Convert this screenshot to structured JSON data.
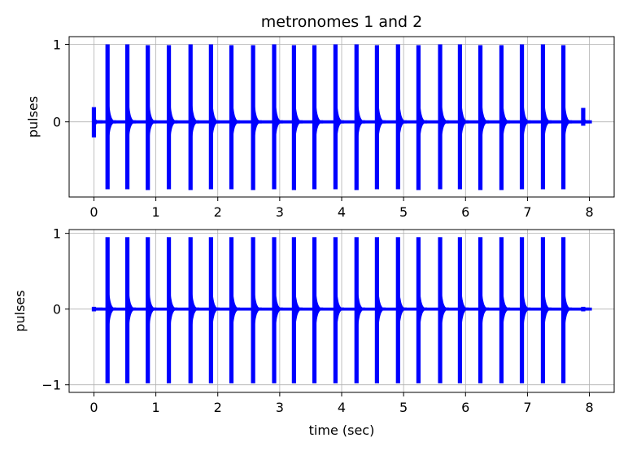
{
  "chart_data": [
    {
      "type": "line",
      "title": "metronomes 1 and 2",
      "xlabel": "",
      "ylabel": "pulses",
      "xlim": [
        -0.4,
        8.4
      ],
      "ylim": [
        -0.97,
        1.1
      ],
      "xticks": [
        0,
        1,
        2,
        3,
        4,
        5,
        6,
        7,
        8
      ],
      "yticks": [
        {
          "value": 1,
          "label": "1"
        },
        {
          "value": 0,
          "label": "0"
        }
      ],
      "grid": true,
      "color": "#0000ff",
      "series": [
        {
          "pulse_times": [
            0.0,
            0.22,
            0.54,
            0.87,
            1.21,
            1.56,
            1.89,
            2.22,
            2.57,
            2.91,
            3.23,
            3.56,
            3.9,
            4.24,
            4.57,
            4.91,
            5.24,
            5.59,
            5.91,
            6.24,
            6.58,
            6.91,
            7.25,
            7.58,
            7.9
          ],
          "pulse_max": [
            0.19,
            1.0,
            1.0,
            0.99,
            0.99,
            1.0,
            1.0,
            0.99,
            0.99,
            1.0,
            0.99,
            0.99,
            1.0,
            1.0,
            0.99,
            1.0,
            0.99,
            1.0,
            1.0,
            0.99,
            0.99,
            1.0,
            1.0,
            0.99,
            0.18
          ],
          "pulse_min": [
            -0.2,
            -0.87,
            -0.87,
            -0.88,
            -0.87,
            -0.88,
            -0.87,
            -0.87,
            -0.88,
            -0.87,
            -0.88,
            -0.87,
            -0.87,
            -0.88,
            -0.87,
            -0.87,
            -0.88,
            -0.87,
            -0.87,
            -0.88,
            -0.88,
            -0.87,
            -0.87,
            -0.87,
            -0.05
          ],
          "data_end": 8.0
        }
      ]
    },
    {
      "type": "line",
      "title": "",
      "xlabel": "time (sec)",
      "ylabel": "pulses",
      "xlim": [
        -0.4,
        8.4
      ],
      "ylim": [
        -1.1,
        1.05
      ],
      "xticks": [
        0,
        1,
        2,
        3,
        4,
        5,
        6,
        7,
        8
      ],
      "yticks": [
        {
          "value": 1,
          "label": "1"
        },
        {
          "value": 0,
          "label": "0"
        },
        {
          "value": -1,
          "label": "−1"
        }
      ],
      "grid": true,
      "color": "#0000ff",
      "series": [
        {
          "pulse_times": [
            0.0,
            0.22,
            0.54,
            0.87,
            1.21,
            1.56,
            1.89,
            2.22,
            2.57,
            2.91,
            3.23,
            3.56,
            3.9,
            4.24,
            4.57,
            4.91,
            5.24,
            5.59,
            5.91,
            6.24,
            6.58,
            6.91,
            7.25,
            7.58,
            7.9
          ],
          "pulse_max": [
            0.03,
            0.95,
            0.95,
            0.95,
            0.95,
            0.95,
            0.95,
            0.95,
            0.95,
            0.95,
            0.95,
            0.95,
            0.95,
            0.95,
            0.95,
            0.95,
            0.95,
            0.95,
            0.95,
            0.95,
            0.95,
            0.95,
            0.95,
            0.95,
            0.03
          ],
          "pulse_min": [
            -0.03,
            -0.98,
            -0.98,
            -0.98,
            -0.98,
            -0.98,
            -0.98,
            -0.98,
            -0.98,
            -0.98,
            -0.98,
            -0.98,
            -0.98,
            -0.98,
            -0.98,
            -0.98,
            -0.98,
            -0.98,
            -0.98,
            -0.98,
            -0.98,
            -0.98,
            -0.98,
            -0.98,
            -0.03
          ],
          "data_end": 8.0
        }
      ]
    }
  ]
}
